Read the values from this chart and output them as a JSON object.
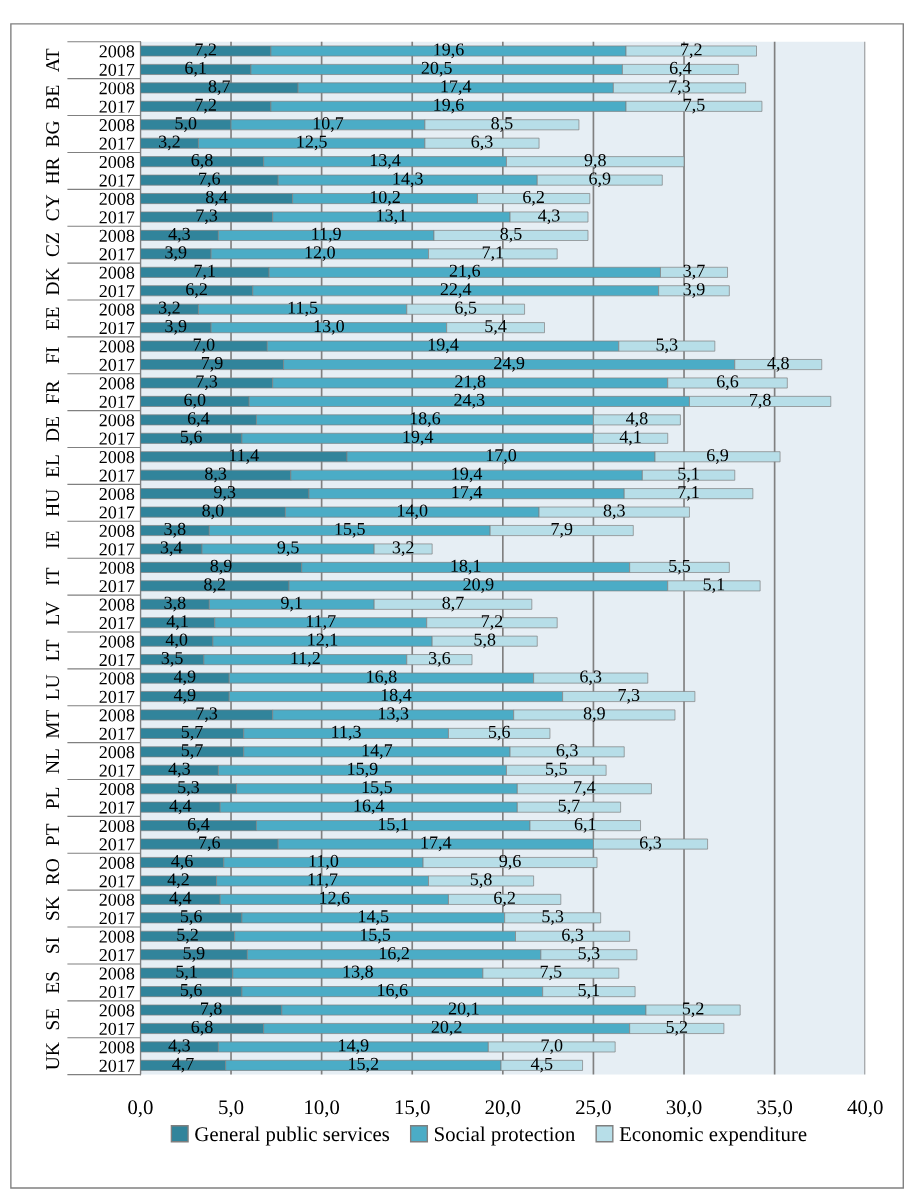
{
  "chart_data": {
    "type": "bar",
    "orientation": "horizontal",
    "stacked": true,
    "categories": [
      "2008",
      "2017",
      "2008",
      "2017",
      "2008",
      "2017",
      "2008",
      "2017",
      "2008",
      "2017",
      "2008",
      "2017",
      "2008",
      "2017",
      "2008",
      "2017",
      "2008",
      "2017",
      "2008",
      "2017",
      "2008",
      "2017",
      "2008",
      "2017",
      "2008",
      "2017",
      "2008",
      "2017",
      "2008",
      "2017",
      "2008",
      "2017",
      "2008",
      "2017",
      "2008",
      "2017",
      "2008",
      "2017",
      "2008",
      "2017",
      "2008",
      "2017",
      "2008",
      "2017",
      "2008",
      "2017",
      "2008",
      "2017",
      "2008",
      "2017",
      "2008",
      "2017",
      "2008",
      "2017",
      "2008",
      "2017"
    ],
    "annotations": [
      "AT",
      "BE",
      "BG",
      "HR",
      "CY",
      "CZ",
      "DK",
      "EE",
      "FI",
      "FR",
      "DE",
      "EL",
      "HU",
      "IE",
      "IT",
      "LV",
      "LT",
      "LU",
      "MT",
      "NL",
      "PL",
      "PT",
      "RO",
      "SK",
      "SI",
      "ES",
      "SE",
      "UK"
    ],
    "series": [
      {
        "name": "General public services",
        "color": "#31849b",
        "values": [
          7.2,
          6.1,
          8.7,
          7.2,
          5.0,
          3.2,
          6.8,
          7.6,
          8.4,
          7.3,
          4.3,
          3.9,
          7.1,
          6.2,
          3.2,
          3.9,
          7.0,
          7.9,
          7.3,
          6.0,
          6.4,
          5.6,
          11.4,
          8.3,
          9.3,
          8.0,
          3.8,
          3.4,
          8.9,
          8.2,
          3.8,
          4.1,
          4.0,
          3.5,
          4.9,
          4.9,
          7.3,
          5.7,
          5.7,
          4.3,
          5.3,
          4.4,
          6.4,
          7.6,
          4.6,
          4.2,
          4.4,
          5.6,
          5.2,
          5.9,
          5.1,
          5.6,
          7.8,
          6.8,
          4.3,
          4.7
        ],
        "value_labels": [
          "7,2",
          "6,1",
          "8,7",
          "7,2",
          "5,0",
          "3,2",
          "6,8",
          "7,6",
          "8,4",
          "7,3",
          "4,3",
          "3,9",
          "7,1",
          "6,2",
          "3,2",
          "3,9",
          "7,0",
          "7,9",
          "7,3",
          "6,0",
          "6,4",
          "5,6",
          "11,4",
          "8,3",
          "9,3",
          "8,0",
          "3,8",
          "3,4",
          "8,9",
          "8,2",
          "3,8",
          "4,1",
          "4,0",
          "3,5",
          "4,9",
          "4,9",
          "7,3",
          "5,7",
          "5,7",
          "4,3",
          "5,3",
          "4,4",
          "6,4",
          "7,6",
          "4,6",
          "4,2",
          "4,4",
          "5,6",
          "5,2",
          "5,9",
          "5,1",
          "5,6",
          "7,8",
          "6,8",
          "4,3",
          "4,7"
        ]
      },
      {
        "name": "Social protection",
        "color": "#4bacc6",
        "values": [
          19.6,
          20.5,
          17.4,
          19.6,
          10.7,
          12.5,
          13.4,
          14.3,
          10.2,
          13.1,
          11.9,
          12.0,
          21.6,
          22.4,
          11.5,
          13.0,
          19.4,
          24.9,
          21.8,
          24.3,
          18.6,
          19.4,
          17.0,
          19.4,
          17.4,
          14.0,
          15.5,
          9.5,
          18.1,
          20.9,
          9.1,
          11.7,
          12.1,
          11.2,
          16.8,
          18.4,
          13.3,
          11.3,
          14.7,
          15.9,
          15.5,
          16.4,
          15.1,
          17.4,
          11.0,
          11.7,
          12.6,
          14.5,
          15.5,
          16.2,
          13.8,
          16.6,
          20.1,
          20.2,
          14.9,
          15.2
        ],
        "value_labels": [
          "19,6",
          "20,5",
          "17,4",
          "19,6",
          "10,7",
          "12,5",
          "13,4",
          "14,3",
          "10,2",
          "13,1",
          "11,9",
          "12,0",
          "21,6",
          "22,4",
          "11,5",
          "13,0",
          "19,4",
          "24,9",
          "21,8",
          "24,3",
          "18,6",
          "19,4",
          "17,0",
          "19,4",
          "17,4",
          "14,0",
          "15,5",
          "9,5",
          "18,1",
          "20,9",
          "9,1",
          "11,7",
          "12,1",
          "11,2",
          "16,8",
          "18,4",
          "13,3",
          "11,3",
          "14,7",
          "15,9",
          "15,5",
          "16,4",
          "15,1",
          "17,4",
          "11,0",
          "11,7",
          "12,6",
          "14,5",
          "15,5",
          "16,2",
          "13,8",
          "16,6",
          "20,1",
          "20,2",
          "14,9",
          "15,2"
        ]
      },
      {
        "name": "Economic expenditure",
        "color": "#b7dee8",
        "values": [
          7.2,
          6.4,
          7.3,
          7.5,
          8.5,
          6.3,
          9.8,
          6.9,
          6.2,
          4.3,
          8.5,
          7.1,
          3.7,
          3.9,
          6.5,
          5.4,
          5.3,
          4.8,
          6.6,
          7.8,
          4.8,
          4.1,
          6.9,
          5.1,
          7.1,
          8.3,
          7.9,
          3.2,
          5.5,
          5.1,
          8.7,
          7.2,
          5.8,
          3.6,
          6.3,
          7.3,
          8.9,
          5.6,
          6.3,
          5.5,
          7.4,
          5.7,
          6.1,
          6.3,
          9.6,
          5.8,
          6.2,
          5.3,
          6.3,
          5.3,
          7.5,
          5.1,
          5.2,
          5.2,
          7.0,
          4.5
        ],
        "value_labels": [
          "7,2",
          "6,4",
          "7,3",
          "7,5",
          "8,5",
          "6,3",
          "9,8",
          "6,9",
          "6,2",
          "4,3",
          "8,5",
          "7,1",
          "3,7",
          "3,9",
          "6,5",
          "5,4",
          "5,3",
          "4,8",
          "6,6",
          "7,8",
          "4,8",
          "4,1",
          "6,9",
          "5,1",
          "7,1",
          "8,3",
          "7,9",
          "3,2",
          "5,5",
          "5,1",
          "8,7",
          "7,2",
          "5,8",
          "3,6",
          "6,3",
          "7,3",
          "8,9",
          "5,6",
          "6,3",
          "5,5",
          "7,4",
          "5,7",
          "6,1",
          "6,3",
          "9,6",
          "5,8",
          "6,2",
          "5,3",
          "6,3",
          "5,3",
          "7,5",
          "5,1",
          "5,2",
          "5,2",
          "7,0",
          "4,5"
        ]
      }
    ],
    "xlim": [
      0,
      40
    ],
    "xticks": [
      {
        "value": 0,
        "label": "0,0"
      },
      {
        "value": 5,
        "label": "5,0"
      },
      {
        "value": 10,
        "label": "10,0"
      },
      {
        "value": 15,
        "label": "15,0"
      },
      {
        "value": 20,
        "label": "20,0"
      },
      {
        "value": 25,
        "label": "25,0"
      },
      {
        "value": 30,
        "label": "30,0"
      },
      {
        "value": 35,
        "label": "35,0"
      },
      {
        "value": 40,
        "label": "40,0"
      }
    ],
    "grid": "x",
    "legend": "bottom"
  }
}
